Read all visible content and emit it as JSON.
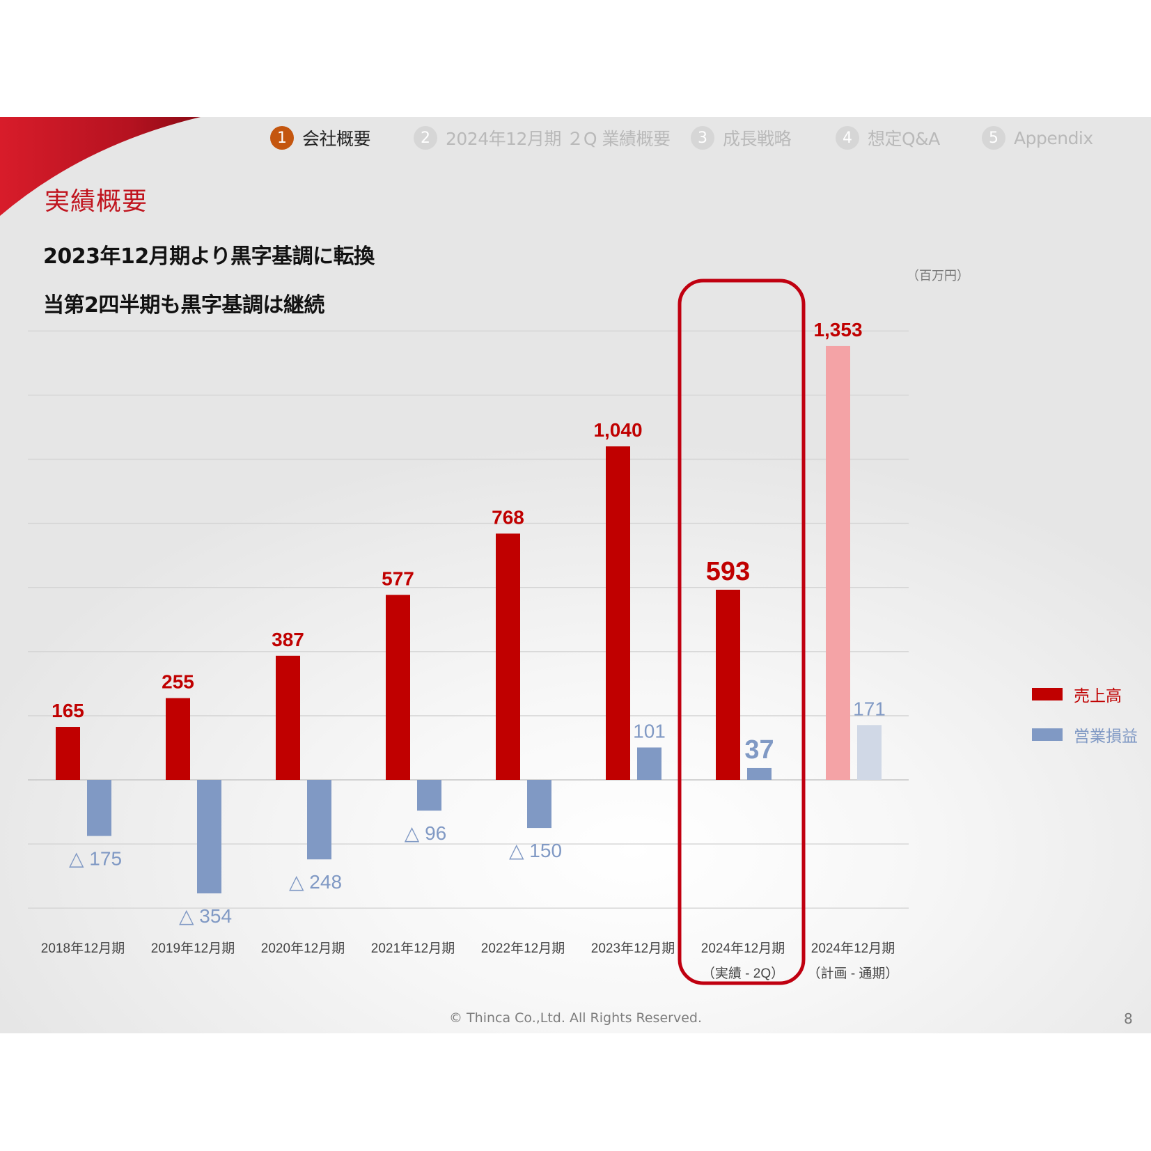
{
  "nav": {
    "items": [
      {
        "num": "1",
        "label": "会社概要",
        "active": true
      },
      {
        "num": "2",
        "label": "2024年12月期 ２Q 業績概要",
        "active": false
      },
      {
        "num": "3",
        "label": "成長戦略",
        "active": false
      },
      {
        "num": "4",
        "label": "想定Q&A",
        "active": false
      },
      {
        "num": "5",
        "label": "Appendix",
        "active": false
      }
    ]
  },
  "section_title": "実績概要",
  "headline": {
    "line1": "2023年12月期より黒字基調に転換",
    "line2": "当第2四半期も黒字基調は継続"
  },
  "unit_label": "（百万円）",
  "colors": {
    "accent_red": "#c0141e",
    "revenue_bar": "#c00000",
    "revenue_plan_bar": "#f4a3a6",
    "op_bar": "#8099c4",
    "op_plan_bar": "#d0d8e6",
    "highlight_frame": "#c00010"
  },
  "chart_data": {
    "type": "bar",
    "categories": [
      [
        "2018年12月期"
      ],
      [
        "2019年12月期"
      ],
      [
        "2020年12月期"
      ],
      [
        "2021年12月期"
      ],
      [
        "2022年12月期"
      ],
      [
        "2023年12月期"
      ],
      [
        "2024年12月期",
        "（実績 - 2Q）"
      ],
      [
        "2024年12月期",
        "（計画 - 通期）"
      ]
    ],
    "series": [
      {
        "name": "売上高",
        "values": [
          165,
          255,
          387,
          577,
          768,
          1040,
          593,
          1353
        ],
        "labels": [
          "165",
          "255",
          "387",
          "577",
          "768",
          "1,040",
          "593",
          "1,353"
        ]
      },
      {
        "name": "営業損益",
        "values": [
          -175,
          -354,
          -248,
          -96,
          -150,
          101,
          37,
          171
        ],
        "labels": [
          "△ 175",
          "△ 354",
          "△ 248",
          "△ 96",
          "△ 150",
          "101",
          "37",
          "171"
        ]
      }
    ],
    "highlight_category": 6,
    "plan_category": 7,
    "ylim": [
      -400,
      1400
    ],
    "grid": true,
    "legend": "right"
  },
  "footer": {
    "copyright": "© Thinca Co.,Ltd. All Rights Reserved.",
    "page": "8"
  }
}
